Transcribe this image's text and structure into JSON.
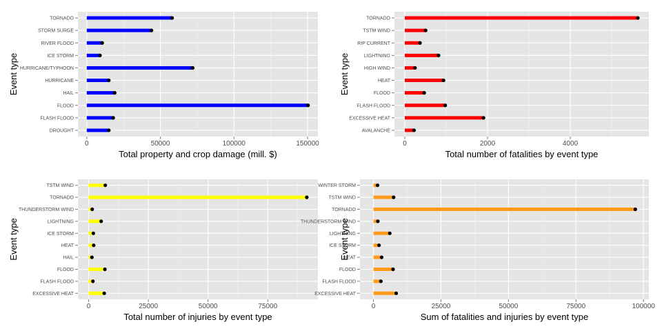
{
  "chart_data": [
    {
      "type": "bar",
      "orientation": "horizontal",
      "color": "#0000ff",
      "categories": [
        "DROUGHT",
        "FLASH FLOOD",
        "FLOOD",
        "HAIL",
        "HURRICANE",
        "HURRICANE/TYPHOON",
        "ICE STORM",
        "RIVER FLOOD",
        "STORM SURGE",
        "TORNADO"
      ],
      "values": [
        15000,
        18000,
        150300,
        19000,
        15000,
        72000,
        9000,
        10500,
        44000,
        58000
      ],
      "xlabel": "Total property and crop damage (mill. $)",
      "ylabel": "Event type",
      "xlim": [
        -6000,
        157000
      ],
      "xticks": [
        0,
        50000,
        100000,
        150000
      ],
      "grid": true
    },
    {
      "type": "bar",
      "orientation": "horizontal",
      "color": "#ff0000",
      "categories": [
        "AVALANCHE",
        "EXCESSIVE HEAT",
        "FLASH FLOOD",
        "FLOOD",
        "HEAT",
        "HIGH WIND",
        "LIGHTNING",
        "RIP CURRENT",
        "TSTM WIND",
        "TORNADO"
      ],
      "values": [
        224,
        1903,
        978,
        470,
        937,
        248,
        816,
        368,
        504,
        5633
      ],
      "xlabel": "Total number of fatalities by event type",
      "ylabel": "Event type",
      "xlim": [
        -250,
        5900
      ],
      "xticks": [
        0,
        2000,
        4000
      ],
      "grid": true
    },
    {
      "type": "bar",
      "orientation": "horizontal",
      "color": "#ffff00",
      "categories": [
        "EXCESSIVE HEAT",
        "FLASH FLOOD",
        "FLOOD",
        "HAIL",
        "HEAT",
        "ICE STORM",
        "LIGHTNING",
        "THUNDERSTORM WIND",
        "TORNADO",
        "TSTM WIND"
      ],
      "values": [
        6525,
        1777,
        6789,
        1361,
        2100,
        1975,
        5230,
        1488,
        91346,
        6957
      ],
      "xlabel": "Total number of injuries by event type",
      "ylabel": "Event type",
      "xlim": [
        -4500,
        96000
      ],
      "xticks": [
        0,
        25000,
        50000,
        75000
      ],
      "grid": true
    },
    {
      "type": "bar",
      "orientation": "horizontal",
      "color": "#ff9a1a",
      "categories": [
        "EXCESSIVE HEAT",
        "FLASH FLOOD",
        "FLOOD",
        "HEAT",
        "ICE STORM",
        "LIGHTNING",
        "THUNDERSTORM WIND",
        "TORNADO",
        "TSTM WIND",
        "WINTER STORM"
      ],
      "values": [
        8428,
        2755,
        7259,
        3037,
        2064,
        6046,
        1621,
        96979,
        7461,
        1527
      ],
      "xlabel": "Sum of fatalities and injuries by event type",
      "ylabel": "Event type",
      "xlim": [
        -5000,
        102000
      ],
      "xticks": [
        0,
        25000,
        50000,
        75000,
        100000
      ],
      "grid": true
    }
  ]
}
